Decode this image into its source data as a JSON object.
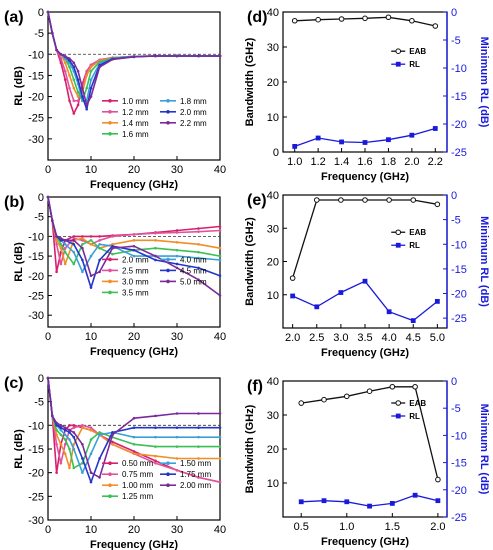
{
  "chart_data": [
    {
      "panel": "(a)",
      "type": "line",
      "xlabel": "Frequency (GHz)",
      "ylabel": "RL (dB)",
      "xlim": [
        0,
        40
      ],
      "ylim": [
        -35,
        0
      ],
      "xticks": [
        0,
        10,
        20,
        30,
        40
      ],
      "yticks": [
        0,
        -5,
        -10,
        -15,
        -20,
        -25,
        -30
      ],
      "ref_line": -10,
      "x": [
        0,
        1,
        2,
        3,
        4,
        5,
        6,
        7,
        8,
        9,
        10,
        12,
        15,
        20,
        25,
        30,
        35,
        40
      ],
      "series": [
        {
          "name": "1.0 mm",
          "color": "#d6206b",
          "values": [
            0,
            -5,
            -9,
            -12,
            -16,
            -21,
            -24,
            -22,
            -17,
            -14,
            -12.5,
            -11.3,
            -10.8,
            -10.5,
            -10.4,
            -10.4,
            -10.4,
            -10.4
          ]
        },
        {
          "name": "1.2 mm",
          "color": "#e0529c",
          "values": [
            0,
            -5,
            -9,
            -11,
            -14,
            -18,
            -21,
            -21,
            -18,
            -14,
            -12.5,
            -11.3,
            -10.8,
            -10.5,
            -10.4,
            -10.4,
            -10.4,
            -10.4
          ]
        },
        {
          "name": "1.4 mm",
          "color": "#f08e2a",
          "values": [
            0,
            -5,
            -9,
            -10,
            -12,
            -15,
            -18,
            -20,
            -19,
            -15,
            -13,
            -11.5,
            -10.8,
            -10.5,
            -10.4,
            -10.4,
            -10.4,
            -10.4
          ]
        },
        {
          "name": "1.6 mm",
          "color": "#3dbf55",
          "values": [
            0,
            -5,
            -9,
            -10,
            -11,
            -13,
            -16,
            -19,
            -21,
            -18,
            -14,
            -11.8,
            -10.9,
            -10.5,
            -10.4,
            -10.4,
            -10.4,
            -10.4
          ]
        },
        {
          "name": "1.8 mm",
          "color": "#3aa0d8",
          "values": [
            0,
            -5,
            -9,
            -10,
            -11,
            -12,
            -14,
            -17,
            -21,
            -21,
            -16,
            -12.2,
            -11,
            -10.5,
            -10.4,
            -10.4,
            -10.4,
            -10.4
          ]
        },
        {
          "name": "2.0 mm",
          "color": "#2236c8",
          "values": [
            0,
            -5,
            -9,
            -10,
            -10.5,
            -11.5,
            -13,
            -16,
            -20,
            -23,
            -18,
            -12.6,
            -11.1,
            -10.6,
            -10.4,
            -10.4,
            -10.4,
            -10.4
          ]
        },
        {
          "name": "2.2 mm",
          "color": "#7b2a9c",
          "values": [
            0,
            -5,
            -9,
            -10,
            -10.5,
            -11,
            -12,
            -14,
            -18,
            -22,
            -20,
            -13,
            -11.2,
            -10.6,
            -10.4,
            -10.4,
            -10.4,
            -10.4
          ]
        }
      ]
    },
    {
      "panel": "(b)",
      "type": "line",
      "xlabel": "Frequency (GHz)",
      "ylabel": "RL (dB)",
      "xlim": [
        0,
        40
      ],
      "ylim": [
        -33,
        0
      ],
      "xticks": [
        0,
        10,
        20,
        30,
        40
      ],
      "yticks": [
        0,
        -5,
        -10,
        -15,
        -20,
        -25,
        -30
      ],
      "ref_line": -10,
      "x": [
        0,
        1,
        2,
        3,
        4,
        6,
        8,
        10,
        12,
        15,
        20,
        25,
        30,
        35,
        40
      ],
      "series": [
        {
          "name": "2.0 mm",
          "color": "#d6206b",
          "values": [
            0,
            -6,
            -19,
            -14,
            -11,
            -10,
            -10,
            -10,
            -10,
            -9.8,
            -9.5,
            -9,
            -8.5,
            -8,
            -7.5
          ]
        },
        {
          "name": "2.5 mm",
          "color": "#e0529c",
          "values": [
            0,
            -6,
            -12,
            -17,
            -13,
            -10.5,
            -11,
            -12,
            -11,
            -10,
            -9.5,
            -9.2,
            -9,
            -8.8,
            -8.5
          ]
        },
        {
          "name": "3.0 mm",
          "color": "#f08e2a",
          "values": [
            0,
            -6,
            -11,
            -13,
            -17,
            -11,
            -10.5,
            -12,
            -13,
            -12,
            -11,
            -11,
            -11.5,
            -12,
            -13
          ]
        },
        {
          "name": "3.5 mm",
          "color": "#3dbf55",
          "values": [
            0,
            -6,
            -10,
            -12,
            -14,
            -17,
            -12,
            -11,
            -13,
            -14.5,
            -13.5,
            -13,
            -13.5,
            -14,
            -15
          ]
        },
        {
          "name": "4.0 mm",
          "color": "#3aa0d8",
          "values": [
            0,
            -6,
            -10,
            -11,
            -12,
            -14,
            -19,
            -15,
            -12,
            -12.5,
            -15,
            -15,
            -15,
            -15.5,
            -16
          ]
        },
        {
          "name": "4.5 mm",
          "color": "#2236c8",
          "values": [
            0,
            -6,
            -10,
            -11,
            -11,
            -12,
            -16,
            -23,
            -16,
            -12.5,
            -13.5,
            -16,
            -17,
            -18,
            -20
          ]
        },
        {
          "name": "5.0 mm",
          "color": "#7b2a9c",
          "values": [
            0,
            -6,
            -10,
            -10.5,
            -11,
            -11,
            -13,
            -20,
            -19,
            -13,
            -12.5,
            -15,
            -18,
            -21,
            -25
          ]
        }
      ]
    },
    {
      "panel": "(c)",
      "type": "line",
      "xlabel": "Frequency (GHz)",
      "ylabel": "RL (dB)",
      "xlim": [
        0,
        40
      ],
      "ylim": [
        -30,
        0
      ],
      "xticks": [
        0,
        10,
        20,
        30,
        40
      ],
      "yticks": [
        0,
        -5,
        -10,
        -15,
        -20,
        -25,
        -30
      ],
      "ref_line": -10,
      "x": [
        0,
        1,
        2,
        3,
        4,
        5,
        6,
        8,
        10,
        12,
        15,
        20,
        25,
        30,
        35,
        40
      ],
      "series": [
        {
          "name": "0.50 mm",
          "color": "#d6206b",
          "values": [
            0,
            -8,
            -20,
            -14,
            -11,
            -10,
            -10,
            -10.5,
            -11,
            -12,
            -13.5,
            -15.5,
            -17.5,
            -19.5,
            -21,
            -22
          ]
        },
        {
          "name": "0.75 mm",
          "color": "#e0529c",
          "values": [
            0,
            -8,
            -14,
            -18,
            -14,
            -11,
            -10.5,
            -10,
            -10.5,
            -12,
            -14,
            -16,
            -18,
            -19.5,
            -21,
            -22
          ]
        },
        {
          "name": "1.00 mm",
          "color": "#f08e2a",
          "values": [
            0,
            -8,
            -12,
            -14,
            -16,
            -19,
            -14,
            -10.5,
            -11,
            -12,
            -14,
            -16,
            -16.5,
            -17,
            -17,
            -17
          ]
        },
        {
          "name": "1.25 mm",
          "color": "#3dbf55",
          "values": [
            0,
            -8,
            -11,
            -12,
            -13,
            -15,
            -19,
            -18,
            -13,
            -11.5,
            -12.5,
            -14,
            -14.5,
            -14.5,
            -14.5,
            -14.5
          ]
        },
        {
          "name": "1.50 mm",
          "color": "#3aa0d8",
          "values": [
            0,
            -8,
            -10,
            -11,
            -12,
            -13,
            -15,
            -20,
            -16,
            -12,
            -11.5,
            -12.5,
            -12.5,
            -12.5,
            -12.5,
            -12.5
          ]
        },
        {
          "name": "1.75 mm",
          "color": "#2236c8",
          "values": [
            0,
            -8,
            -10,
            -10.5,
            -11,
            -11.5,
            -12.5,
            -17,
            -22,
            -17,
            -11.5,
            -10.5,
            -10.5,
            -10.5,
            -10.5,
            -10.5
          ]
        },
        {
          "name": "2.00 mm",
          "color": "#7b2a9c",
          "values": [
            0,
            -8,
            -9.5,
            -10,
            -10.5,
            -11,
            -11.5,
            -14,
            -20,
            -21,
            -12,
            -8.5,
            -8,
            -7.5,
            -7.5,
            -7.5
          ]
        }
      ]
    },
    {
      "panel": "(d)",
      "type": "line",
      "xlabel": "Frequency (GHz)",
      "ylabel": "Bandwidth (GHz)",
      "ylabel_right": "Minimum RL (dB)",
      "xlim": [
        0.9,
        2.3
      ],
      "ylim": [
        0,
        40
      ],
      "ylim_right": [
        -25,
        0
      ],
      "xticks": [
        1.0,
        1.2,
        1.4,
        1.6,
        1.8,
        2.0,
        2.2
      ],
      "yticks": [
        0,
        10,
        20,
        30,
        40
      ],
      "yticks_right": [
        0,
        -5,
        -10,
        -15,
        -20,
        -25
      ],
      "categories": [
        1.0,
        1.2,
        1.4,
        1.6,
        1.8,
        2.0,
        2.2
      ],
      "series": [
        {
          "name": "EAB",
          "axis": "left",
          "marker": "circle",
          "color": "#111111",
          "values": [
            37.5,
            37.8,
            38.0,
            38.2,
            38.5,
            37.5,
            36.0
          ]
        },
        {
          "name": "RL",
          "axis": "right",
          "marker": "square",
          "color": "#1a1adb",
          "values": [
            -24.0,
            -22.5,
            -23.2,
            -23.3,
            -22.8,
            -22.0,
            -20.8
          ]
        }
      ],
      "legend": "right"
    },
    {
      "panel": "(e)",
      "type": "line",
      "xlabel": "Frequency (GHz)",
      "ylabel": "Bandwidth (GHz)",
      "ylabel_right": "Minimum RL (dB)",
      "xlim": [
        1.8,
        5.2
      ],
      "ylim": [
        0,
        40
      ],
      "ylim_right": [
        -27,
        0
      ],
      "xticks": [
        2.0,
        2.5,
        3.0,
        3.5,
        4.0,
        4.5,
        5.0
      ],
      "yticks": [
        10,
        20,
        30,
        40
      ],
      "yticks_right": [
        0,
        -5,
        -10,
        -15,
        -20,
        -25
      ],
      "categories": [
        2.0,
        2.5,
        3.0,
        3.5,
        4.0,
        4.5,
        5.0
      ],
      "series": [
        {
          "name": "EAB",
          "axis": "left",
          "marker": "circle",
          "color": "#111111",
          "values": [
            15,
            38.5,
            38.5,
            38.5,
            38.5,
            38.5,
            37.2
          ]
        },
        {
          "name": "RL",
          "axis": "right",
          "marker": "square",
          "color": "#1a1adb",
          "values": [
            -20.5,
            -22.7,
            -19.8,
            -17.5,
            -23.7,
            -25.5,
            -21.6
          ]
        }
      ],
      "legend": "right"
    },
    {
      "panel": "(f)",
      "type": "line",
      "xlabel": "Frequency (GHz)",
      "ylabel": "Bandwidth (GHz)",
      "ylabel_right": "Minimum RL (dB)",
      "xlim": [
        0.3,
        2.1
      ],
      "ylim": [
        0,
        40
      ],
      "ylim_right": [
        -25,
        0
      ],
      "xticks": [
        0.5,
        1.0,
        1.5,
        2.0
      ],
      "yticks": [
        10,
        20,
        30,
        40
      ],
      "yticks_right": [
        0,
        -5,
        -10,
        -15,
        -20,
        -25
      ],
      "categories": [
        0.5,
        0.75,
        1.0,
        1.25,
        1.5,
        1.75,
        2.0
      ],
      "series": [
        {
          "name": "EAB",
          "axis": "left",
          "marker": "circle",
          "color": "#111111",
          "values": [
            33.5,
            34.5,
            35.5,
            37.0,
            38.3,
            38.3,
            11.0
          ]
        },
        {
          "name": "RL",
          "axis": "right",
          "marker": "square",
          "color": "#1a1adb",
          "values": [
            -22.2,
            -22.0,
            -22.2,
            -23.0,
            -22.5,
            -21.0,
            -22.0
          ]
        }
      ],
      "legend": "top-right"
    }
  ]
}
